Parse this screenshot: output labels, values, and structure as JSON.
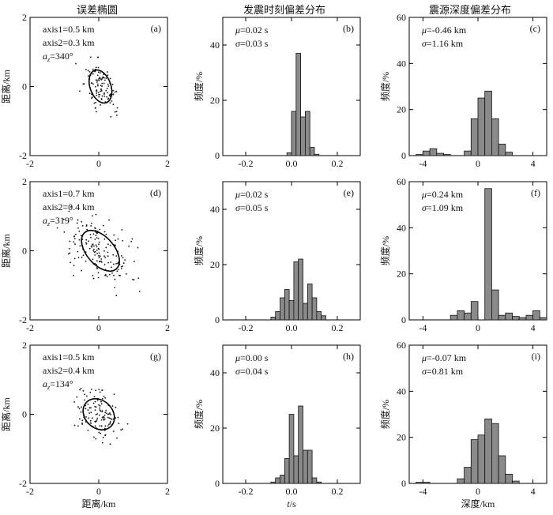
{
  "column_titles": [
    "误差椭圆",
    "发震时刻偏差分布",
    "震源深度偏差分布"
  ],
  "chart_data": [
    {
      "type": "scatter",
      "panel": "(a)",
      "ylabel": "距离/km",
      "xlabel": "",
      "xlim": [
        -2,
        2
      ],
      "ylim": [
        -2,
        2
      ],
      "xticks": [
        "-2",
        "0",
        "2"
      ],
      "yticks": [
        "-2",
        "0",
        "2"
      ],
      "annotations": [
        "axis1=0.5 km",
        "axis2=0.3 km",
        "=340°"
      ],
      "az_prefix": "a",
      "az_sub": "z",
      "ellipse": {
        "center": [
          0.05,
          0.0
        ],
        "semi_major": 0.5,
        "semi_minor": 0.3,
        "azimuth_deg": 340
      },
      "seed": 11,
      "n_points": 120,
      "spread": 1.0
    },
    {
      "type": "bar",
      "panel": "(b)",
      "ylabel": "频度/%",
      "xlabel": "",
      "xlim": [
        -0.3,
        0.3
      ],
      "ylim": [
        0,
        50
      ],
      "xticks": [
        "-0.2",
        "0.0",
        "0.2"
      ],
      "yticks": [
        "0",
        "20",
        "40"
      ],
      "stats": [
        "μ=0.02 s",
        "σ=0.03 s"
      ],
      "bin_start": -0.02,
      "bin_width": 0.02,
      "values": [
        1,
        16,
        37,
        14,
        16,
        3,
        0.5
      ]
    },
    {
      "type": "bar",
      "panel": "(c)",
      "ylabel": "频度/%",
      "xlabel": "",
      "xlim": [
        -5,
        5
      ],
      "ylim": [
        0,
        60
      ],
      "xticks": [
        "-4",
        "0",
        "4"
      ],
      "yticks": [
        "0",
        "20",
        "40",
        "60"
      ],
      "stats": [
        "μ=-0.46 km",
        "σ=1.16 km"
      ],
      "bin_start": -4.5,
      "bin_width": 0.5,
      "values": [
        0.5,
        2,
        3,
        1,
        0.5,
        0,
        0,
        2,
        16,
        25,
        28,
        16,
        5,
        1.5
      ]
    },
    {
      "type": "scatter",
      "panel": "(d)",
      "ylabel": "距离/km",
      "xlabel": "",
      "xlim": [
        -2,
        2
      ],
      "ylim": [
        -2,
        2
      ],
      "xticks": [
        "-2",
        "0",
        "2"
      ],
      "yticks": [
        "-2",
        "0",
        "2"
      ],
      "annotations": [
        "axis1=0.7 km",
        "axis2=0.4 km",
        "=319°"
      ],
      "az_prefix": "a",
      "az_sub": "z",
      "ellipse": {
        "center": [
          0.05,
          0.0
        ],
        "semi_major": 0.7,
        "semi_minor": 0.4,
        "azimuth_deg": 319
      },
      "seed": 23,
      "n_points": 170,
      "spread": 1.15
    },
    {
      "type": "bar",
      "panel": "(e)",
      "ylabel": "频度/%",
      "xlabel": "",
      "xlim": [
        -0.3,
        0.3
      ],
      "ylim": [
        0,
        50
      ],
      "xticks": [
        "-0.2",
        "0.0",
        "0.2"
      ],
      "yticks": [
        "0",
        "20",
        "40"
      ],
      "stats": [
        "μ=0.02 s",
        "σ=0.05 s"
      ],
      "bin_start": -0.09,
      "bin_width": 0.02,
      "values": [
        1,
        3,
        8,
        11,
        7,
        21,
        22,
        6,
        13,
        8,
        3,
        1.5
      ]
    },
    {
      "type": "bar",
      "panel": "(f)",
      "ylabel": "频度/%",
      "xlabel": "",
      "xlim": [
        -5,
        5
      ],
      "ylim": [
        0,
        60
      ],
      "xticks": [
        "-4",
        "0",
        "4"
      ],
      "yticks": [
        "0",
        "20",
        "40",
        "60"
      ],
      "stats": [
        "μ=0.24 km",
        "σ=1.09 km"
      ],
      "bin_start": -2,
      "bin_width": 0.5,
      "values": [
        2,
        4,
        3,
        8,
        0,
        57,
        13,
        2,
        3,
        1.5,
        1,
        2,
        4,
        1
      ]
    },
    {
      "type": "scatter",
      "panel": "(g)",
      "ylabel": "距离/km",
      "xlabel": "距离/km",
      "xlim": [
        -2,
        2
      ],
      "ylim": [
        -2,
        2
      ],
      "xticks": [
        "-2",
        "0",
        "2"
      ],
      "yticks": [
        "-2",
        "0",
        "2"
      ],
      "annotations": [
        "axis1=0.5 km",
        "axis2=0.4 km",
        "=134°"
      ],
      "az_prefix": "a",
      "az_sub": "z",
      "ellipse": {
        "center": [
          0.0,
          0.0
        ],
        "semi_major": 0.5,
        "semi_minor": 0.4,
        "azimuth_deg": 134
      },
      "seed": 37,
      "n_points": 130,
      "spread": 1.0
    },
    {
      "type": "bar",
      "panel": "(h)",
      "ylabel": "频度/%",
      "xlabel": "t/s",
      "xlim": [
        -0.3,
        0.3
      ],
      "ylim": [
        0,
        50
      ],
      "xticks": [
        "-0.2",
        "0.0",
        "0.2"
      ],
      "yticks": [
        "0",
        "20",
        "40"
      ],
      "stats": [
        "μ=0.00 s",
        "σ=0.04 s"
      ],
      "bin_start": -0.09,
      "bin_width": 0.02,
      "values": [
        0.5,
        2,
        3,
        9,
        25,
        10,
        28,
        12,
        12,
        2,
        0.5
      ]
    },
    {
      "type": "bar",
      "panel": "(i)",
      "ylabel": "频度/%",
      "xlabel": "深度/km",
      "xlim": [
        -5,
        5
      ],
      "ylim": [
        0,
        60
      ],
      "xticks": [
        "-4",
        "0",
        "4"
      ],
      "yticks": [
        "0",
        "20",
        "40",
        "60"
      ],
      "stats": [
        "μ=-0.07 km",
        "σ=0.81 km"
      ],
      "bin_start": -4.5,
      "bin_width": 0.5,
      "values": [
        0.5,
        0.5,
        0,
        0,
        0,
        0,
        2,
        7,
        19,
        21,
        28,
        26,
        12,
        4,
        1
      ]
    }
  ]
}
